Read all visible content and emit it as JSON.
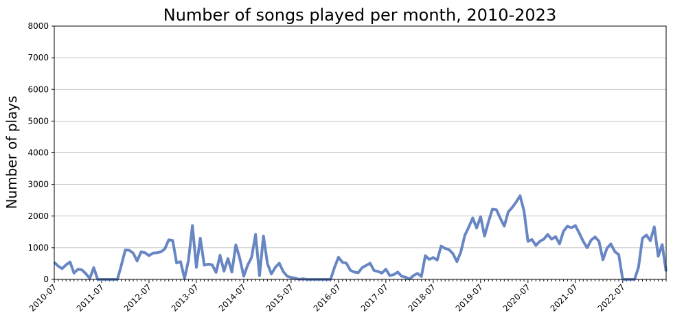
{
  "chart_data": {
    "type": "line",
    "title": "Number of songs played per month, 2010-2023",
    "ylabel": "Number of plays",
    "categories": [
      "2010-07",
      null,
      null,
      null,
      null,
      null,
      null,
      null,
      null,
      null,
      null,
      null,
      "2011-07",
      null,
      null,
      null,
      null,
      null,
      null,
      null,
      null,
      null,
      null,
      null,
      "2012-07",
      null,
      null,
      null,
      null,
      null,
      null,
      null,
      null,
      null,
      null,
      null,
      "2013-07",
      null,
      null,
      null,
      null,
      null,
      null,
      null,
      null,
      null,
      null,
      null,
      "2014-07",
      null,
      null,
      null,
      null,
      null,
      null,
      null,
      null,
      null,
      null,
      null,
      "2015-07",
      null,
      null,
      null,
      null,
      null,
      null,
      null,
      null,
      null,
      null,
      null,
      "2016-07",
      null,
      null,
      null,
      null,
      null,
      null,
      null,
      null,
      null,
      null,
      null,
      "2017-07",
      null,
      null,
      null,
      null,
      null,
      null,
      null,
      null,
      null,
      null,
      null,
      "2018-07",
      null,
      null,
      null,
      null,
      null,
      null,
      null,
      null,
      null,
      null,
      null,
      "2019-07",
      null,
      null,
      null,
      null,
      null,
      null,
      null,
      null,
      null,
      null,
      null,
      "2020-07",
      null,
      null,
      null,
      null,
      null,
      null,
      null,
      null,
      null,
      null,
      null,
      "2021-07",
      null,
      null,
      null,
      null,
      null,
      null,
      null,
      null,
      null,
      null,
      null,
      "2022-07",
      null,
      null,
      null,
      null,
      null,
      null,
      null,
      null,
      null,
      null,
      null
    ],
    "values": [
      540,
      420,
      340,
      460,
      550,
      200,
      320,
      300,
      180,
      30,
      370,
      0,
      0,
      0,
      0,
      0,
      0,
      450,
      930,
      920,
      830,
      580,
      870,
      840,
      750,
      830,
      840,
      870,
      960,
      1250,
      1230,
      520,
      560,
      30,
      600,
      1700,
      380,
      1300,
      450,
      480,
      460,
      220,
      760,
      260,
      660,
      230,
      1090,
      660,
      100,
      450,
      700,
      1420,
      120,
      1370,
      500,
      170,
      380,
      510,
      250,
      100,
      60,
      40,
      0,
      20,
      0,
      0,
      0,
      0,
      0,
      0,
      0,
      380,
      700,
      540,
      510,
      290,
      230,
      210,
      370,
      440,
      510,
      280,
      250,
      200,
      320,
      120,
      150,
      230,
      100,
      70,
      10,
      120,
      190,
      90,
      750,
      630,
      690,
      610,
      1050,
      980,
      940,
      810,
      560,
      870,
      1390,
      1650,
      1940,
      1620,
      1980,
      1370,
      1820,
      2220,
      2200,
      1930,
      1680,
      2130,
      2270,
      2440,
      2640,
      2160,
      1200,
      1260,
      1070,
      1200,
      1270,
      1420,
      1270,
      1350,
      1120,
      1520,
      1680,
      1630,
      1700,
      1460,
      1200,
      1000,
      1240,
      1340,
      1200,
      620,
      980,
      1120,
      880,
      780,
      0,
      0,
      0,
      0,
      380,
      1300,
      1400,
      1220,
      1660,
      730,
      1100,
      250
    ],
    "color": "#5f7fc0",
    "ylim": [
      0,
      8000
    ],
    "yticks": [
      0,
      1000,
      2000,
      3000,
      4000,
      5000,
      6000,
      7000,
      8000
    ],
    "grid": true
  }
}
